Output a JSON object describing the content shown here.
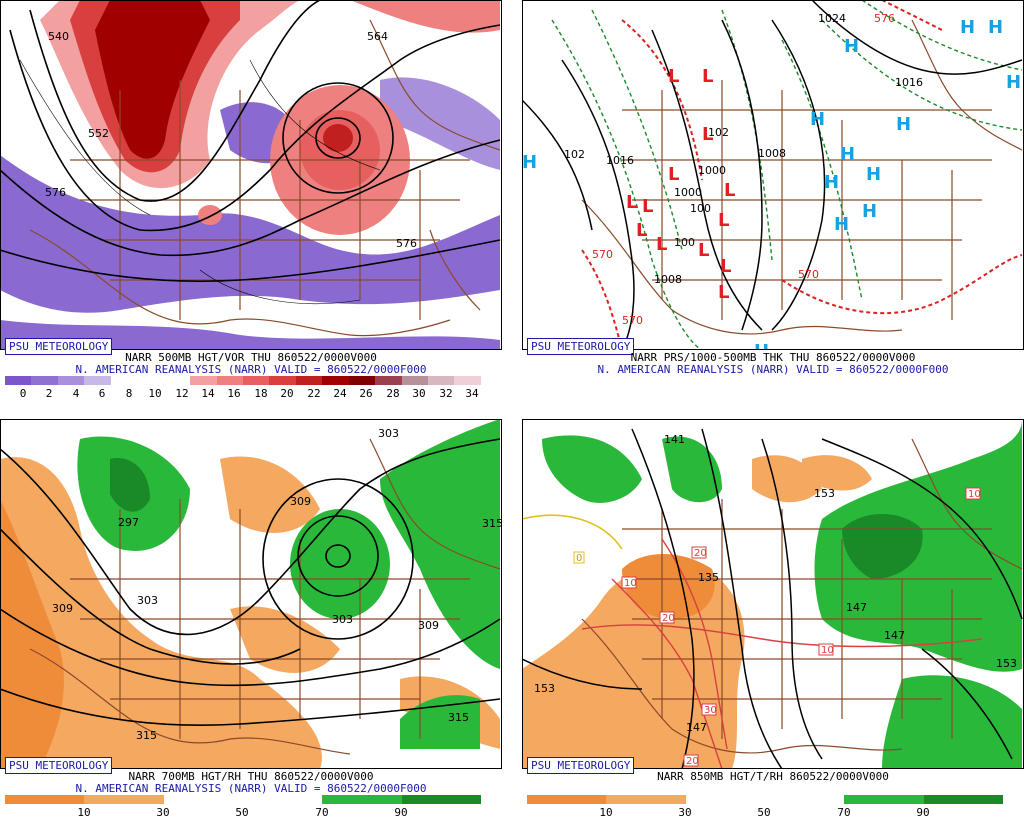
{
  "panels": [
    {
      "psu": "PSU METEOROLOGY",
      "line1": "NARR 500MB HGT/VOR THU 860522/0000V000",
      "line2": "N. AMERICAN REANALYSIS (NARR) VALID = 860522/0000F000",
      "scale": {
        "ticks": [
          "0",
          "2",
          "4",
          "6",
          "8",
          "10",
          "12",
          "14",
          "16",
          "18",
          "20",
          "22",
          "24",
          "26",
          "28",
          "30",
          "32",
          "34"
        ],
        "colors": [
          "#7b55c9",
          "#9070d0",
          "#a890dc",
          "#c8b8e8",
          "#ffffff",
          "#ffffff",
          "#ffffff",
          "#f3a0a0",
          "#ee8080",
          "#e66060",
          "#d84040",
          "#c02020",
          "#a00000",
          "#800000",
          "#9a4050",
          "#b8909a",
          "#d8b8c0",
          "#f0d0d8"
        ]
      },
      "contour_labels": [
        "540",
        "552",
        "576",
        "564",
        "576"
      ]
    },
    {
      "psu": "PSU METEOROLOGY",
      "line1": "NARR PRS/1000-500MB THK THU 860522/0000V000",
      "line2": "N. AMERICAN REANALYSIS (NARR) VALID = 860522/0000F000",
      "contour_labels": [
        "1024",
        "1016",
        "1016",
        "102",
        "1008",
        "1000",
        "1000",
        "100",
        "100",
        "1008",
        "102",
        "570",
        "570",
        "570",
        "576"
      ],
      "high_symbol": "H",
      "low_symbol": "L"
    },
    {
      "psu": "PSU METEOROLOGY",
      "line1": "NARR 700MB HGT/RH THU 860522/0000V000",
      "line2": "N. AMERICAN REANALYSIS (NARR) VALID = 860522/0000F000",
      "scale": {
        "ticks": [
          "10",
          "30",
          "50",
          "70",
          "90"
        ],
        "colors": [
          "#ee8c3a",
          "#f4a860",
          "#ffffff",
          "#ffffff",
          "#2ab83a",
          "#1a8a28"
        ]
      },
      "contour_labels": [
        "303",
        "297",
        "309",
        "309",
        "303",
        "303",
        "315",
        "315",
        "315",
        "309"
      ]
    },
    {
      "psu": "PSU METEOROLOGY",
      "line1": "NARR 850MB HGT/T/RH 860522/0000V000",
      "line2": "",
      "scale": {
        "ticks": [
          "10",
          "30",
          "50",
          "70",
          "90"
        ],
        "colors": [
          "#ee8c3a",
          "#f4a860",
          "#ffffff",
          "#ffffff",
          "#2ab83a",
          "#1a8a28"
        ]
      },
      "contour_labels": [
        "141",
        "153",
        "135",
        "147",
        "147",
        "153",
        "153",
        "147"
      ],
      "temp_labels": [
        "10",
        "20",
        "20",
        "10",
        "30",
        "20",
        "0",
        "10",
        "10"
      ]
    }
  ],
  "colors": {
    "border": "#8a4a2a",
    "text_blue": "#1a1aa8",
    "high": "#1aa0e0",
    "low": "#e02020",
    "thk_red": "#e02020",
    "thk_green": "#1a8a28"
  }
}
